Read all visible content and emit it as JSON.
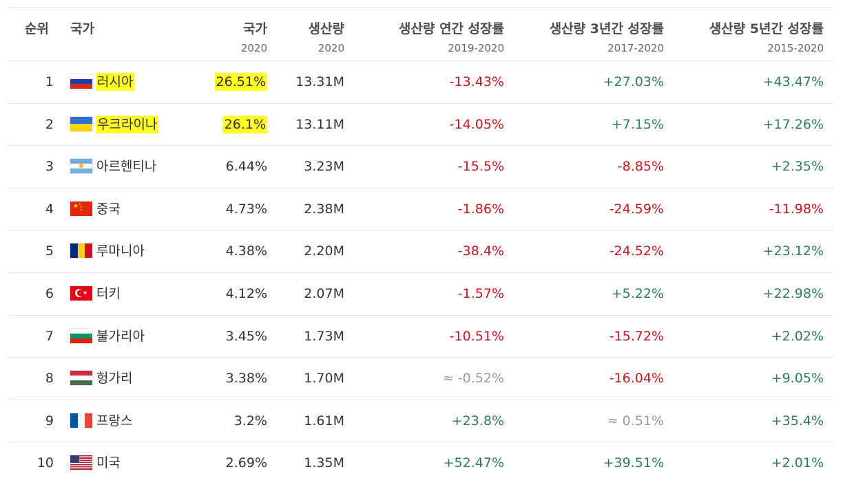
{
  "header": {
    "rank": "순위",
    "country": "국가",
    "share": "국가",
    "share_sub": "2020",
    "production": "생산량",
    "production_sub": "2020",
    "growth1": "생산량 연간 성장률",
    "growth1_sub": "2019-2020",
    "growth3": "생산량 3년간 성장률",
    "growth3_sub": "2017-2020",
    "growth5": "생산량 5년간 성장률",
    "growth5_sub": "2015-2020"
  },
  "rows": [
    {
      "rank": "1",
      "country": "러시아",
      "flag": "russia-flag-icon",
      "share": "26.51%",
      "production": "13.31M",
      "g1": "-13.43%",
      "g3": "+27.03%",
      "g5": "+43.47%",
      "highlight": true
    },
    {
      "rank": "2",
      "country": "우크라이나",
      "flag": "ukraine-flag-icon",
      "share": "26.1%",
      "production": "13.11M",
      "g1": "-14.05%",
      "g3": "+7.15%",
      "g5": "+17.26%",
      "highlight": true
    },
    {
      "rank": "3",
      "country": "아르헨티나",
      "flag": "argentina-flag-icon",
      "share": "6.44%",
      "production": "3.23M",
      "g1": "-15.5%",
      "g3": "-8.85%",
      "g5": "+2.35%"
    },
    {
      "rank": "4",
      "country": "중국",
      "flag": "china-flag-icon",
      "share": "4.73%",
      "production": "2.38M",
      "g1": "-1.86%",
      "g3": "-24.59%",
      "g5": "-11.98%"
    },
    {
      "rank": "5",
      "country": "루마니아",
      "flag": "romania-flag-icon",
      "share": "4.38%",
      "production": "2.20M",
      "g1": "-38.4%",
      "g3": "-24.52%",
      "g5": "+23.12%"
    },
    {
      "rank": "6",
      "country": "터키",
      "flag": "turkey-flag-icon",
      "share": "4.12%",
      "production": "2.07M",
      "g1": "-1.57%",
      "g3": "+5.22%",
      "g5": "+22.98%"
    },
    {
      "rank": "7",
      "country": "불가리아",
      "flag": "bulgaria-flag-icon",
      "share": "3.45%",
      "production": "1.73M",
      "g1": "-10.51%",
      "g3": "-15.72%",
      "g5": "+2.02%"
    },
    {
      "rank": "8",
      "country": "헝가리",
      "flag": "hungary-flag-icon",
      "share": "3.38%",
      "production": "1.70M",
      "g1": "≈ -0.52%",
      "g3": "-16.04%",
      "g5": "+9.05%"
    },
    {
      "rank": "9",
      "country": "프랑스",
      "flag": "france-flag-icon",
      "share": "3.2%",
      "production": "1.61M",
      "g1": "+23.8%",
      "g3": "≈ 0.51%",
      "g5": "+35.4%"
    },
    {
      "rank": "10",
      "country": "미국",
      "flag": "usa-flag-icon",
      "share": "2.69%",
      "production": "1.35M",
      "g1": "+52.47%",
      "g3": "+39.51%",
      "g5": "+2.01%"
    }
  ],
  "colors": {
    "negative": "#c8161e",
    "positive": "#2e7d5b",
    "neutral": "#999999",
    "highlight": "#ffff26"
  }
}
